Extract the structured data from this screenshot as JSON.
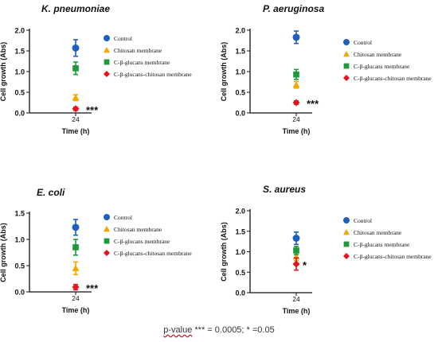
{
  "colors": {
    "Control": "#1f5fbf",
    "Chitosan membrane": "#f5a800",
    "C-β-glucans membrane": "#1f9a3a",
    "C-β-glucans-chitosan membrane": "#e8141c"
  },
  "footnote": {
    "prefix": "p-value",
    "rest": " *** = 0.0005; * =0.05"
  },
  "chart_data": [
    {
      "type": "scatter",
      "title": "K. pneumoniae",
      "xlabel": "Time (h)",
      "ylabel": "Cell growth (Abs)",
      "ylim": [
        0,
        2.0
      ],
      "yticks": [
        "0.0",
        "0.5",
        "1.0",
        "1.5",
        "2.0"
      ],
      "categories": [
        "24"
      ],
      "significance": "***",
      "legend": "right",
      "series": [
        {
          "name": "Control",
          "marker": "circle",
          "values": [
            1.57
          ],
          "error": [
            0.2
          ]
        },
        {
          "name": "Chitosan membrane",
          "marker": "triangle",
          "values": [
            0.37
          ],
          "error": [
            0.07
          ]
        },
        {
          "name": "C-β-glucans membrane",
          "marker": "square",
          "values": [
            1.08
          ],
          "error": [
            0.15
          ]
        },
        {
          "name": "C-β-glucans-chitosan membrane",
          "marker": "diamond",
          "values": [
            0.1
          ],
          "error": [
            0.04
          ]
        }
      ]
    },
    {
      "type": "scatter",
      "title": "P. aeruginosa",
      "xlabel": "Time (h)",
      "ylabel": "Cell growth (Abs)",
      "ylim": [
        0,
        2.0
      ],
      "yticks": [
        "0.0",
        "0.5",
        "1.0",
        "1.5",
        "2.0"
      ],
      "categories": [
        "24"
      ],
      "significance": "***",
      "legend": "right",
      "series": [
        {
          "name": "Control",
          "marker": "circle",
          "values": [
            1.83
          ],
          "error": [
            0.15
          ]
        },
        {
          "name": "Chitosan membrane",
          "marker": "triangle",
          "values": [
            0.68
          ],
          "error": [
            0.08
          ]
        },
        {
          "name": "C-β-glucans membrane",
          "marker": "square",
          "values": [
            0.93
          ],
          "error": [
            0.12
          ]
        },
        {
          "name": "C-β-glucans-chitosan membrane",
          "marker": "diamond",
          "values": [
            0.25
          ],
          "error": [
            0.04
          ]
        }
      ]
    },
    {
      "type": "scatter",
      "title": "E. coli",
      "xlabel": "Time (h)",
      "ylabel": "Cell growth (Abs)",
      "ylim": [
        0,
        1.5
      ],
      "yticks": [
        "0.0",
        "0.5",
        "1.0",
        "1.5"
      ],
      "categories": [
        "24"
      ],
      "significance": "***",
      "legend": "right",
      "series": [
        {
          "name": "Control",
          "marker": "circle",
          "values": [
            1.23
          ],
          "error": [
            0.15
          ]
        },
        {
          "name": "Chitosan membrane",
          "marker": "triangle",
          "values": [
            0.45
          ],
          "error": [
            0.12
          ]
        },
        {
          "name": "C-β-glucans membrane",
          "marker": "square",
          "values": [
            0.85
          ],
          "error": [
            0.15
          ]
        },
        {
          "name": "C-β-glucans-chitosan membrane",
          "marker": "diamond",
          "values": [
            0.09
          ],
          "error": [
            0.05
          ]
        }
      ]
    },
    {
      "type": "scatter",
      "title": "S. aureus",
      "xlabel": "Time (h)",
      "ylabel": "Cell growth (Abs)",
      "ylim": [
        0,
        2.0
      ],
      "yticks": [
        "0.0",
        "0.5",
        "1.0",
        "1.5",
        "2.0"
      ],
      "categories": [
        "24"
      ],
      "significance": "*",
      "legend": "right",
      "series": [
        {
          "name": "Control",
          "marker": "circle",
          "values": [
            1.33
          ],
          "error": [
            0.15
          ]
        },
        {
          "name": "Chitosan membrane",
          "marker": "triangle",
          "values": [
            0.88
          ],
          "error": [
            0.1
          ]
        },
        {
          "name": "C-β-glucans membrane",
          "marker": "square",
          "values": [
            1.03
          ],
          "error": [
            0.1
          ]
        },
        {
          "name": "C-β-glucans-chitosan membrane",
          "marker": "diamond",
          "values": [
            0.7
          ],
          "error": [
            0.15
          ]
        }
      ]
    }
  ]
}
